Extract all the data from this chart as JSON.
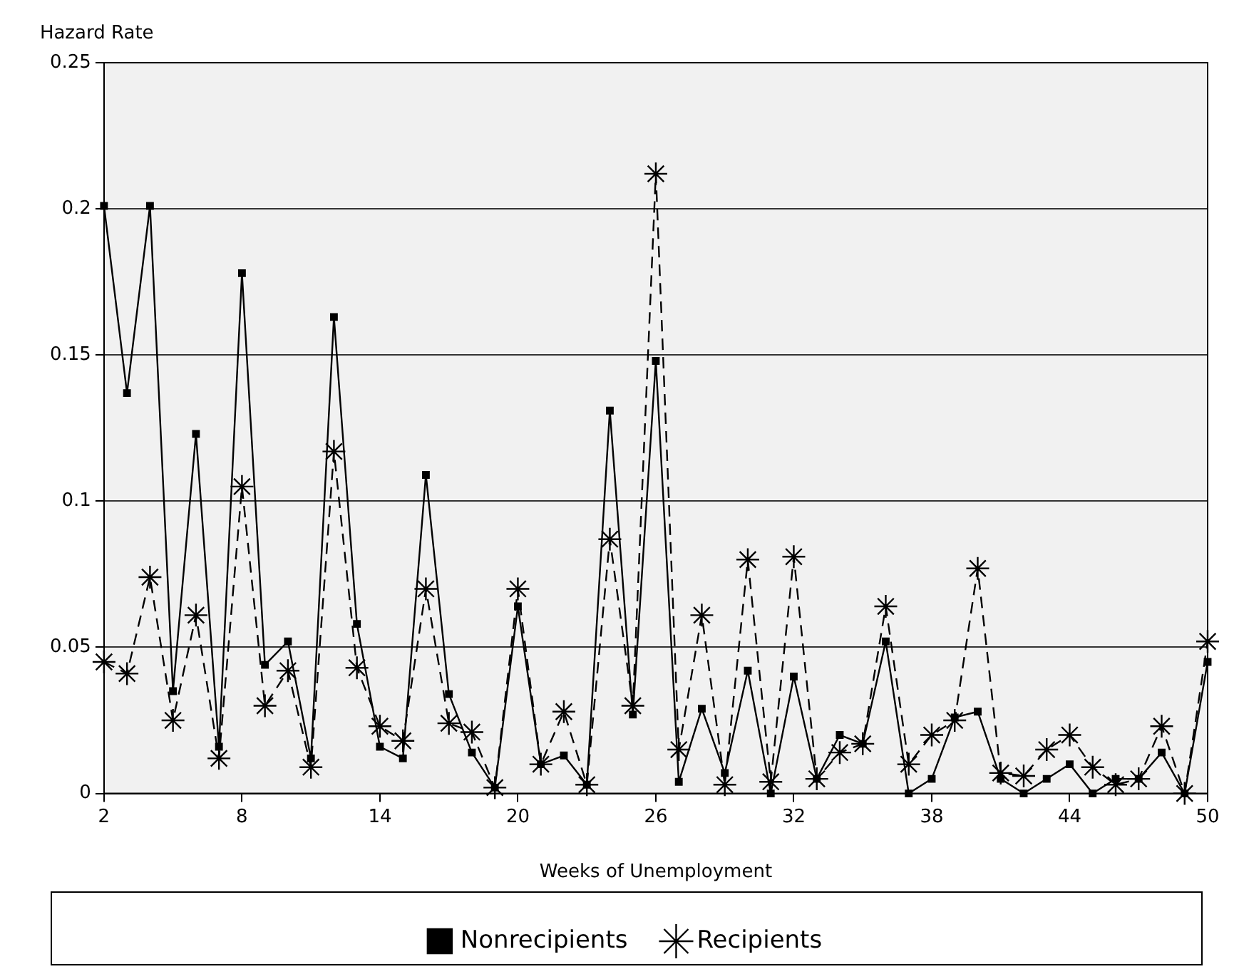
{
  "chart_data": {
    "type": "line",
    "xlabel": "Weeks of Unemployment",
    "ylabel": "Hazard Rate",
    "x": [
      2,
      3,
      4,
      5,
      6,
      7,
      8,
      9,
      10,
      11,
      12,
      13,
      14,
      15,
      16,
      17,
      18,
      19,
      20,
      21,
      22,
      23,
      24,
      25,
      26,
      27,
      28,
      29,
      30,
      31,
      32,
      33,
      34,
      35,
      36,
      37,
      38,
      39,
      40,
      41,
      42,
      43,
      44,
      45,
      46,
      47,
      48,
      49,
      50
    ],
    "series": [
      {
        "name": "Nonrecipients",
        "color": "#000000",
        "marker": "square",
        "line_style": "solid",
        "values": [
          0.201,
          0.137,
          0.201,
          0.035,
          0.123,
          0.016,
          0.178,
          0.044,
          0.052,
          0.012,
          0.163,
          0.058,
          0.016,
          0.012,
          0.109,
          0.034,
          0.014,
          0.002,
          0.064,
          0.01,
          0.013,
          0.003,
          0.131,
          0.027,
          0.148,
          0.004,
          0.029,
          0.007,
          0.042,
          0.0,
          0.04,
          0.005,
          0.02,
          0.017,
          0.052,
          0.0,
          0.005,
          0.026,
          0.028,
          0.005,
          0.0,
          0.005,
          0.01,
          0.0,
          0.005,
          0.005,
          0.014,
          0.0,
          0.045
        ]
      },
      {
        "name": "Recipients",
        "color": "#000000",
        "marker": "cross",
        "line_style": "dashed",
        "values": [
          0.045,
          0.041,
          0.074,
          0.025,
          0.061,
          0.012,
          0.105,
          0.03,
          0.042,
          0.009,
          0.117,
          0.043,
          0.023,
          0.018,
          0.07,
          0.024,
          0.021,
          0.002,
          0.07,
          0.01,
          0.028,
          0.003,
          0.087,
          0.03,
          0.212,
          0.015,
          0.061,
          0.003,
          0.08,
          0.004,
          0.081,
          0.005,
          0.014,
          0.017,
          0.064,
          0.01,
          0.02,
          0.025,
          0.077,
          0.007,
          0.006,
          0.015,
          0.02,
          0.009,
          0.003,
          0.005,
          0.023,
          0.0,
          0.052
        ]
      }
    ],
    "xlim": [
      2,
      50
    ],
    "xticks": [
      2,
      8,
      14,
      20,
      26,
      32,
      38,
      44,
      50
    ],
    "ylim": [
      0,
      0.25
    ],
    "yticks": [
      0,
      0.05,
      0.1,
      0.15,
      0.2,
      0.25
    ],
    "grid": "y",
    "legend": "bottom"
  }
}
